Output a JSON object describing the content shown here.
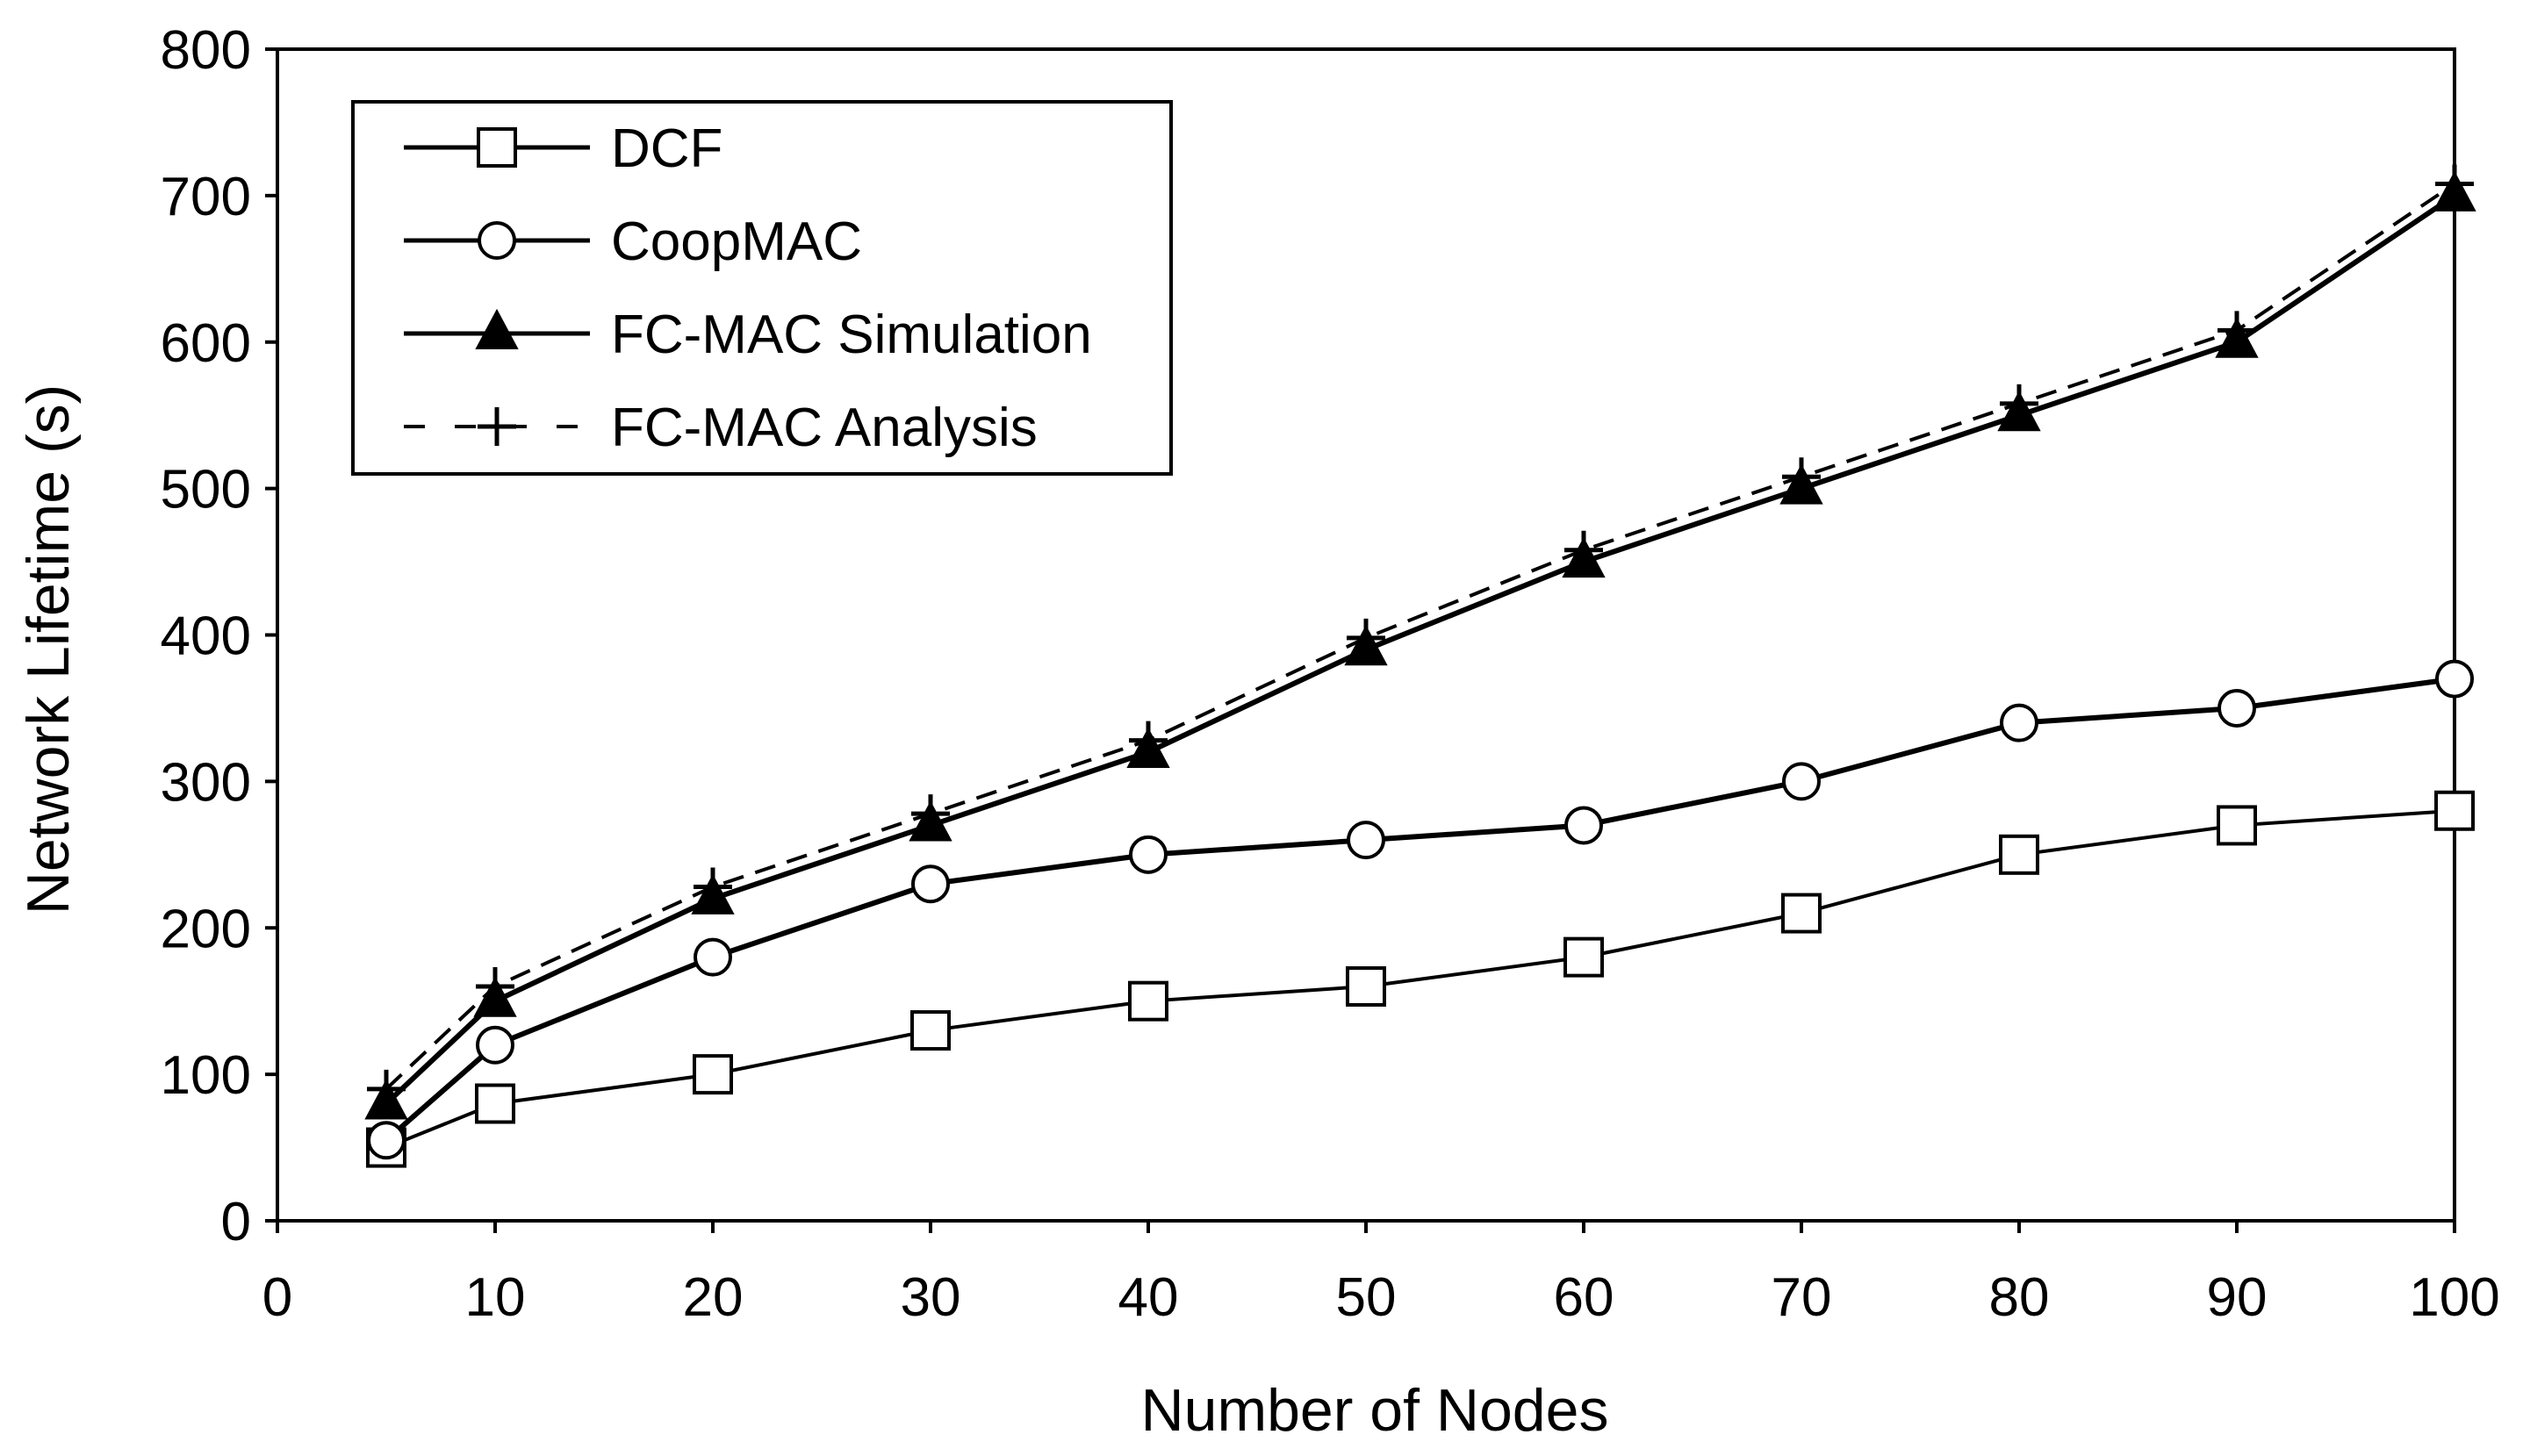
{
  "chart_data": {
    "type": "line",
    "title": "",
    "xlabel": "Number of Nodes",
    "ylabel": "Network Lifetime (s)",
    "xlim": [
      0,
      100
    ],
    "ylim": [
      0,
      800
    ],
    "xticks": [
      0,
      10,
      20,
      30,
      40,
      50,
      60,
      70,
      80,
      90,
      100
    ],
    "yticks": [
      0,
      100,
      200,
      300,
      400,
      500,
      600,
      700,
      800
    ],
    "grid": false,
    "legend_position": "top-left",
    "x": [
      5,
      10,
      20,
      30,
      40,
      50,
      60,
      70,
      80,
      90,
      100
    ],
    "series": [
      {
        "name": "DCF",
        "marker": "square-open",
        "line": "solid",
        "stroke": "#000000",
        "values": [
          50,
          80,
          100,
          130,
          150,
          160,
          180,
          210,
          250,
          270,
          280
        ]
      },
      {
        "name": "CoopMAC",
        "marker": "circle-open",
        "line": "solid",
        "stroke": "#000000",
        "values": [
          55,
          120,
          180,
          230,
          250,
          260,
          270,
          300,
          340,
          350,
          370
        ]
      },
      {
        "name": "FC-MAC Simulation",
        "marker": "triangle-filled",
        "line": "solid",
        "stroke": "#000000",
        "values": [
          80,
          150,
          220,
          270,
          320,
          390,
          450,
          500,
          550,
          600,
          700
        ]
      },
      {
        "name": "FC-MAC Analysis",
        "marker": "plus",
        "line": "dashed",
        "stroke": "#000000",
        "values": [
          90,
          160,
          228,
          278,
          328,
          398,
          458,
          508,
          558,
          608,
          708
        ]
      }
    ]
  }
}
